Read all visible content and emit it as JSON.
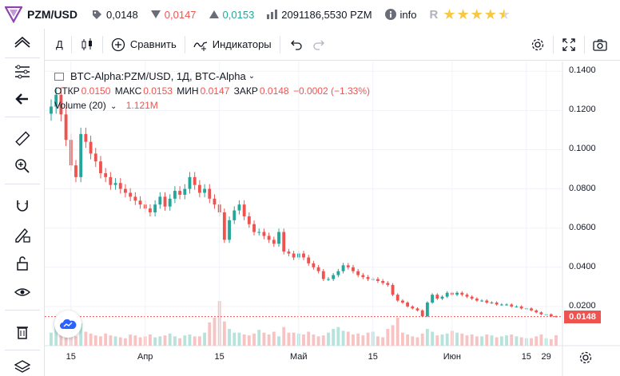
{
  "header": {
    "pair": "PZM/USD",
    "last_price": "0,0148",
    "low_price": "0,0147",
    "high_price": "0,0153",
    "volume": "2091186,5530 PZM",
    "info_label": "info",
    "rating_stars": 4.5
  },
  "toolbar": {
    "interval": "Д",
    "compare_label": "Сравнить",
    "indicators_label": "Индикаторы"
  },
  "legend": {
    "title": "BTC-Alpha:PZM/USD, 1Д, BTC-Alpha",
    "open_key": "ОТКР",
    "open": "0.0150",
    "high_key": "МАКС",
    "high": "0.0153",
    "low_key": "МИН",
    "low": "0.0147",
    "close_key": "ЗАКР",
    "close": "0.0148",
    "change": "−0.0002 (−1.33%)",
    "volume_label": "Volume (20)",
    "volume_value": "1.121M"
  },
  "price_axis": {
    "ticks": [
      "0.1400",
      "0.1200",
      "0.1000",
      "0.0800",
      "0.0600",
      "0.0400",
      "0.0200"
    ],
    "current": "0.0148"
  },
  "time_axis": {
    "ticks": [
      "15",
      "Апр",
      "15",
      "Май",
      "15",
      "Июн",
      "15",
      "29"
    ]
  },
  "colors": {
    "up": "#26a69a",
    "down": "#ef5350",
    "volume_up": "#b7e3dc",
    "volume_down": "#f7c4c3",
    "grid": "#f0f3fa",
    "accent": "#2962ff"
  },
  "icons": {
    "logo": "prizm-logo-icon",
    "cloud": "cloud-icon"
  },
  "chart_data": {
    "type": "candlestick",
    "interval": "1D",
    "ylim": [
      0.0,
      0.145
    ],
    "x_ticks": [
      "15",
      "Апр",
      "15",
      "Май",
      "15",
      "Июн",
      "15",
      "29"
    ],
    "y_ticks": [
      0.14,
      0.12,
      0.1,
      0.08,
      0.06,
      0.04,
      0.02
    ],
    "close": [
      0.122,
      0.128,
      0.118,
      0.105,
      0.092,
      0.086,
      0.108,
      0.104,
      0.098,
      0.094,
      0.088,
      0.086,
      0.082,
      0.083,
      0.08,
      0.078,
      0.076,
      0.074,
      0.072,
      0.07,
      0.068,
      0.072,
      0.076,
      0.071,
      0.075,
      0.079,
      0.077,
      0.08,
      0.086,
      0.082,
      0.078,
      0.08,
      0.075,
      0.072,
      0.068,
      0.054,
      0.064,
      0.069,
      0.072,
      0.066,
      0.062,
      0.058,
      0.058,
      0.056,
      0.054,
      0.052,
      0.058,
      0.048,
      0.047,
      0.045,
      0.047,
      0.045,
      0.042,
      0.04,
      0.038,
      0.034,
      0.034,
      0.036,
      0.038,
      0.041,
      0.04,
      0.038,
      0.036,
      0.035,
      0.034,
      0.034,
      0.033,
      0.032,
      0.031,
      0.026,
      0.023,
      0.022,
      0.02,
      0.019,
      0.018,
      0.015,
      0.022,
      0.026,
      0.024,
      0.025,
      0.027,
      0.026,
      0.027,
      0.026,
      0.025,
      0.024,
      0.023,
      0.023,
      0.022,
      0.022,
      0.021,
      0.021,
      0.021,
      0.02,
      0.02,
      0.019,
      0.019,
      0.018,
      0.017,
      0.016,
      0.016,
      0.015,
      0.0148
    ],
    "volume": [
      1.4,
      2.2,
      1.7,
      1.2,
      1.0,
      1.0,
      2.4,
      1.5,
      1.3,
      1.1,
      1.0,
      1.3,
      1.1,
      1.0,
      0.9,
      0.8,
      1.2,
      1.1,
      0.9,
      1.0,
      1.2,
      0.9,
      1.0,
      1.1,
      1.3,
      1.0,
      0.8,
      1.1,
      1.2,
      1.0,
      1.0,
      1.4,
      2.5,
      3.0,
      4.8,
      2.6,
      1.8,
      1.4,
      1.4,
      1.2,
      1.1,
      1.3,
      1.7,
      1.4,
      1.2,
      1.5,
      1.0,
      2.0,
      1.4,
      1.4,
      1.3,
      1.2,
      1.5,
      1.2,
      1.0,
      1.1,
      1.4,
      1.8,
      2.0,
      1.6,
      1.5,
      1.2,
      1.3,
      1.1,
      1.4,
      1.5,
      1.0,
      0.9,
      1.8,
      2.2,
      3.0,
      1.4,
      1.2,
      1.0,
      0.9,
      1.3,
      1.8,
      1.5,
      1.1,
      1.2,
      1.3,
      1.6,
      1.4,
      1.3,
      1.1,
      1.2,
      1.0,
      1.0,
      1.2,
      1.1,
      0.9,
      1.0,
      1.1,
      1.2,
      1.0,
      0.9,
      0.8,
      0.8,
      1.0,
      1.2,
      0.8,
      0.7,
      1.121
    ]
  }
}
